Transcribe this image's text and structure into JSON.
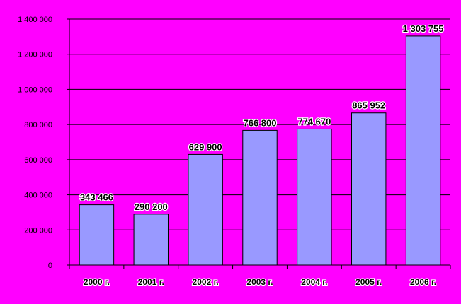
{
  "colors": {
    "background": "#ff00ff",
    "bar_fill": "#9999ff",
    "bar_stroke": "#000000",
    "gridline": "#000000",
    "label_outline": "#ffffff"
  },
  "chart_data": {
    "type": "bar",
    "title": "",
    "xlabel": "",
    "ylabel": "",
    "categories": [
      "2000 г.",
      "2001 г.",
      "2002 г.",
      "2003 г.",
      "2004 г.",
      "2005 г.",
      "2006 г."
    ],
    "values": [
      343466,
      290200,
      629900,
      766800,
      774670,
      865952,
      1303755
    ],
    "data_labels": [
      "343 466",
      "290 200",
      "629 900",
      "766 800",
      "774 670",
      "865 952",
      "1 303 755"
    ],
    "ylim": [
      0,
      1400000
    ],
    "y_ticks": [
      0,
      200000,
      400000,
      600000,
      800000,
      1000000,
      1200000,
      1400000
    ],
    "y_tick_labels": [
      "0",
      "200 000",
      "400 000",
      "600 000",
      "800 000",
      "1 000 000",
      "1 200 000",
      "1 400 000"
    ],
    "grid": true,
    "legend": "none"
  }
}
